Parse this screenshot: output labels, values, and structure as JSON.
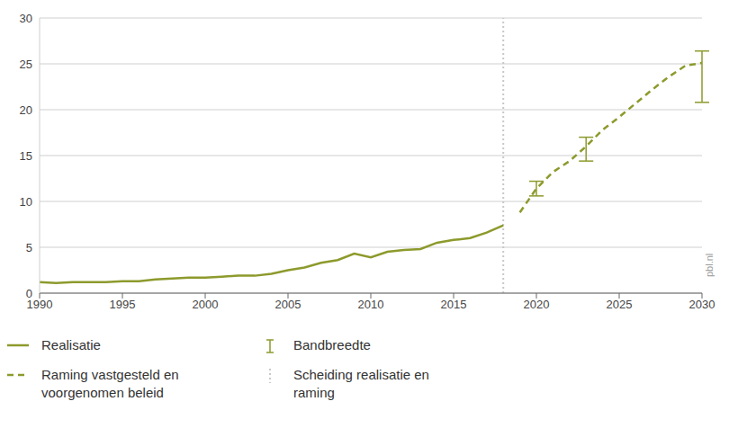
{
  "chart_data": {
    "type": "line",
    "x": [
      1990,
      1991,
      1992,
      1993,
      1994,
      1995,
      1996,
      1997,
      1998,
      1999,
      2000,
      2001,
      2002,
      2003,
      2004,
      2005,
      2006,
      2007,
      2008,
      2009,
      2010,
      2011,
      2012,
      2013,
      2014,
      2015,
      2016,
      2017,
      2018,
      2019,
      2020,
      2021,
      2022,
      2023,
      2024,
      2025,
      2026,
      2027,
      2028,
      2029,
      2030
    ],
    "series": [
      {
        "name": "Realisatie",
        "color": "#8d9a2c",
        "line_style": "solid",
        "values": [
          1.2,
          1.1,
          1.2,
          1.2,
          1.2,
          1.3,
          1.3,
          1.5,
          1.6,
          1.7,
          1.7,
          1.8,
          1.9,
          1.9,
          2.1,
          2.5,
          2.8,
          3.3,
          3.6,
          4.3,
          3.9,
          4.5,
          4.7,
          4.8,
          5.5,
          5.8,
          6.0,
          6.6,
          7.4,
          null,
          null,
          null,
          null,
          null,
          null,
          null,
          null,
          null,
          null,
          null,
          null
        ]
      },
      {
        "name": "Raming vastgesteld en voorgenomen beleid",
        "color": "#8d9a2c",
        "line_style": "dashed",
        "values": [
          null,
          null,
          null,
          null,
          null,
          null,
          null,
          null,
          null,
          null,
          null,
          null,
          null,
          null,
          null,
          null,
          null,
          null,
          null,
          null,
          null,
          null,
          null,
          null,
          null,
          null,
          null,
          null,
          null,
          8.8,
          11.4,
          13.2,
          14.4,
          16.0,
          17.8,
          19.2,
          20.7,
          22.2,
          23.6,
          24.8,
          25.1
        ]
      }
    ],
    "band": {
      "name": "Bandbreedte",
      "color": "#8d9a2c",
      "x": [
        2020,
        2023,
        2030
      ],
      "low": [
        10.6,
        14.4,
        20.8
      ],
      "high": [
        12.2,
        17.0,
        26.4
      ]
    },
    "divider": {
      "name": "Scheiding realisatie en raming",
      "x": 2018,
      "color": "#c8c8c8",
      "line_style": "dotted"
    },
    "xlim": [
      1990,
      2030
    ],
    "xticks": [
      1990,
      1995,
      2000,
      2005,
      2010,
      2015,
      2020,
      2025,
      2030
    ],
    "ylim": [
      0,
      30
    ],
    "yticks": [
      0,
      5,
      10,
      15,
      20,
      25,
      30
    ],
    "grid": true,
    "legend": "bottom",
    "annotations": [
      "pbl.nl"
    ]
  }
}
